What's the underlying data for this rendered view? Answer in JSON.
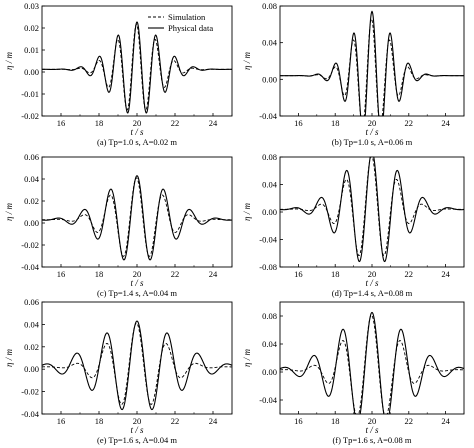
{
  "axis_labels": {
    "x": "t / s",
    "y": "η / m"
  },
  "legend": {
    "dashed": "Simulation",
    "solid": "Physical data"
  },
  "chart_data": [
    {
      "type": "line",
      "caption": "(a) Tp=1.0 s, A=0.02 m",
      "xlim": [
        15,
        25
      ],
      "ylim": [
        -0.02,
        0.03
      ],
      "xticks": [
        "16",
        "18",
        "20",
        "22",
        "24"
      ],
      "yticks": [
        "-0.02",
        "-0.01",
        "0.00",
        "0.01",
        "0.02",
        "0.03"
      ],
      "y0": [
        "-0.02",
        "-0.01",
        "0.00",
        "0.01",
        "0.02",
        "0.03"
      ],
      "wave": {
        "period": 1.0,
        "sim_amp": 0.0205,
        "phys_amp": 0.0215,
        "sim_width": 1.55,
        "phys_width": 1.75,
        "base": 0.0012
      },
      "series": [
        {
          "name": "Simulation",
          "style": "dashed",
          "period": 1.0,
          "amplitude": 0.0205
        },
        {
          "name": "Physical data",
          "style": "solid",
          "period": 1.0,
          "amplitude": 0.0215
        }
      ]
    },
    {
      "type": "line",
      "caption": "(b) Tp=1.0 s, A=0.06 m",
      "xlim": [
        15,
        25
      ],
      "ylim": [
        -0.04,
        0.08
      ],
      "xticks": [
        "16",
        "18",
        "20",
        "22",
        "24"
      ],
      "yticks": [
        "-0.04",
        "0.00",
        "0.04",
        "0.08"
      ],
      "wave": {
        "period": 1.0,
        "sim_amp": 0.062,
        "phys_amp": 0.07,
        "sim_width": 1.45,
        "phys_width": 1.55,
        "base": 0.004
      },
      "series": [
        {
          "name": "Simulation",
          "style": "dashed",
          "period": 1.0,
          "amplitude": 0.062
        },
        {
          "name": "Physical data",
          "style": "solid",
          "period": 1.0,
          "amplitude": 0.07
        }
      ]
    },
    {
      "type": "line",
      "caption": "(c) Tp=1.4 s, A=0.04 m",
      "xlim": [
        15,
        25
      ],
      "ylim": [
        -0.04,
        0.06
      ],
      "xticks": [
        "16",
        "18",
        "20",
        "22",
        "24"
      ],
      "yticks": [
        "-0.04",
        "-0.02",
        "0.00",
        "0.02",
        "0.04",
        "0.06"
      ],
      "wave": {
        "period": 1.4,
        "sim_amp": 0.038,
        "phys_amp": 0.04,
        "sim_width": 1.9,
        "phys_width": 2.3,
        "base": 0.003
      },
      "series": [
        {
          "name": "Simulation",
          "style": "dashed",
          "period": 1.4,
          "amplitude": 0.038
        },
        {
          "name": "Physical data",
          "style": "solid",
          "period": 1.4,
          "amplitude": 0.04
        }
      ]
    },
    {
      "type": "line",
      "caption": "(d) Tp=1.4 s, A=0.08 m",
      "xlim": [
        15,
        25
      ],
      "ylim": [
        -0.08,
        0.08
      ],
      "xticks": [
        "16",
        "18",
        "20",
        "22",
        "24"
      ],
      "yticks": [
        "-0.08",
        "-0.04",
        "0.00",
        "0.04",
        "0.08"
      ],
      "wave": {
        "period": 1.4,
        "sim_amp": 0.078,
        "phys_amp": 0.084,
        "sim_width": 1.8,
        "phys_width": 2.2,
        "base": 0.004
      },
      "series": [
        {
          "name": "Simulation",
          "style": "dashed",
          "period": 1.4,
          "amplitude": 0.078
        },
        {
          "name": "Physical data",
          "style": "solid",
          "period": 1.4,
          "amplitude": 0.084
        }
      ]
    },
    {
      "type": "line",
      "caption": "(e) Tp=1.6 s, A=0.04 m",
      "xlim": [
        15,
        25
      ],
      "ylim": [
        -0.04,
        0.06
      ],
      "xticks": [
        "16",
        "18",
        "20",
        "22",
        "24"
      ],
      "yticks": [
        "-0.04",
        "-0.02",
        "0.00",
        "0.02",
        "0.04",
        "0.06"
      ],
      "wave": {
        "period": 1.6,
        "sim_amp": 0.039,
        "phys_amp": 0.041,
        "sim_width": 2.0,
        "phys_width": 2.9,
        "base": 0.002
      },
      "series": [
        {
          "name": "Simulation",
          "style": "dashed",
          "period": 1.6,
          "amplitude": 0.039
        },
        {
          "name": "Physical data",
          "style": "solid",
          "period": 1.6,
          "amplitude": 0.041
        }
      ]
    },
    {
      "type": "line",
      "caption": "(f) Tp=1.6 s, A=0.08 m",
      "xlim": [
        15,
        25
      ],
      "ylim": [
        -0.06,
        0.1
      ],
      "xticks": [
        "16",
        "18",
        "20",
        "22",
        "24"
      ],
      "yticks": [
        "-0.04",
        "0.00",
        "0.04",
        "0.08"
      ],
      "wave": {
        "period": 1.6,
        "sim_amp": 0.078,
        "phys_amp": 0.082,
        "sim_width": 2.0,
        "phys_width": 2.7,
        "base": 0.003
      },
      "series": [
        {
          "name": "Simulation",
          "style": "dashed",
          "period": 1.6,
          "amplitude": 0.078
        },
        {
          "name": "Physical data",
          "style": "solid",
          "period": 1.6,
          "amplitude": 0.082
        }
      ]
    }
  ]
}
